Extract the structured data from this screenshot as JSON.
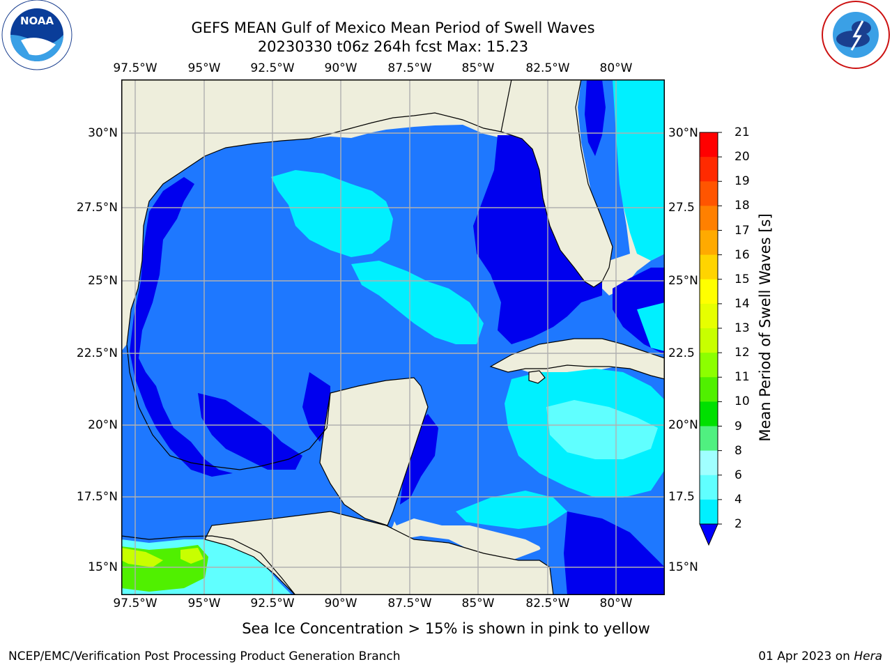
{
  "title_line1": "GEFS MEAN Gulf of Mexico Mean Period of Swell Waves",
  "title_line2": "20230330 t06z 264h fcst   Max: 15.23",
  "lon_labels": [
    "97.5°W",
    "95°W",
    "92.5°W",
    "90°W",
    "87.5°W",
    "85°W",
    "82.5°W",
    "80°W"
  ],
  "lat_labels_left": [
    "30°N",
    "27.5°N",
    "25°N",
    "22.5°N",
    "20°N",
    "17.5°N",
    "15°N"
  ],
  "lat_labels_right": [
    "30°N",
    "27.5",
    "25°N",
    "22.5",
    "20°N",
    "17.5",
    "15°N"
  ],
  "colorbar": {
    "label": "Mean Period of Swell Waves [s]",
    "ticks": [
      "21",
      "20",
      "19",
      "18",
      "17",
      "16",
      "15",
      "14",
      "13",
      "12",
      "11",
      "10",
      "9",
      "8",
      "6",
      "4",
      "2"
    ],
    "colors": [
      "#ff0000",
      "#ff2a00",
      "#ff5500",
      "#ff8000",
      "#ffaa00",
      "#ffd400",
      "#ffff00",
      "#e6ff00",
      "#c8ff00",
      "#8cff00",
      "#50f000",
      "#00e000",
      "#50f080",
      "#a0ffff",
      "#60ffff",
      "#00f0ff",
      "#00e8ff",
      "#0080ff",
      "#0000ff"
    ]
  },
  "note": "Sea Ice Concentration > 15% is shown in pink to yellow",
  "footer_left": "NCEP/EMC/Verification Post Processing Product Generation Branch",
  "footer_date": "01 Apr 2023 on",
  "footer_machine": "Hera",
  "logos": {
    "left": "noaa-logo",
    "right": "nws-logo"
  },
  "colors": {
    "land": "#eeeedc",
    "ocean": "#1e78ff",
    "deep": "#0000ee",
    "cyan": "#00ffff",
    "grid": "#b0b0b0"
  }
}
